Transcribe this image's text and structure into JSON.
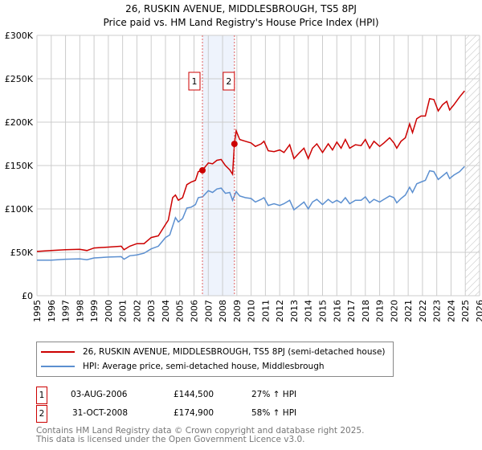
{
  "chart_data": {
    "type": "line",
    "title": "26, RUSKIN AVENUE, MIDDLESBROUGH, TS5 8PJ",
    "subtitle": "Price paid vs. HM Land Registry's House Price Index (HPI)",
    "xlabel": "",
    "ylabel": "",
    "xlim": [
      1995,
      2026
    ],
    "ylim": [
      0,
      300000
    ],
    "x_ticks": [
      "1995",
      "1996",
      "1997",
      "1998",
      "1999",
      "2000",
      "2001",
      "2002",
      "2003",
      "2004",
      "2005",
      "2006",
      "2007",
      "2008",
      "2009",
      "2010",
      "2011",
      "2012",
      "2013",
      "2014",
      "2015",
      "2016",
      "2017",
      "2018",
      "2019",
      "2020",
      "2021",
      "2022",
      "2023",
      "2024",
      "2025",
      "2026"
    ],
    "y_ticks": [
      {
        "v": 0,
        "label": "£0"
      },
      {
        "v": 50000,
        "label": "£50K"
      },
      {
        "v": 100000,
        "label": "£100K"
      },
      {
        "v": 150000,
        "label": "£150K"
      },
      {
        "v": 200000,
        "label": "£200K"
      },
      {
        "v": 250000,
        "label": "£250K"
      },
      {
        "v": 300000,
        "label": "£300K"
      }
    ],
    "grid": true,
    "shaded_period": [
      2006.59,
      2008.83
    ],
    "forecast_hatch_from": 2025.0,
    "series": [
      {
        "name": "26, RUSKIN AVENUE, MIDDLESBROUGH, TS5 8PJ (semi-detached house)",
        "color": "#cc0000",
        "x": [
          1995,
          1996,
          1997,
          1998,
          1998.5,
          1999,
          2000,
          2000.9,
          2001.1,
          2001.5,
          2002,
          2002.5,
          2003,
          2003.5,
          2004,
          2004.2,
          2004.5,
          2004.7,
          2004.9,
          2005.2,
          2005.5,
          2005.8,
          2006.1,
          2006.3,
          2006.59,
          2007,
          2007.3,
          2007.6,
          2007.9,
          2008.2,
          2008.5,
          2008.7,
          2008.83,
          2008.95,
          2009.2,
          2009.6,
          2010,
          2010.3,
          2010.7,
          2010.9,
          2011.2,
          2011.6,
          2012,
          2012.3,
          2012.7,
          2013,
          2013.4,
          2013.7,
          2014,
          2014.3,
          2014.6,
          2015,
          2015.4,
          2015.7,
          2016,
          2016.3,
          2016.6,
          2016.9,
          2017.3,
          2017.7,
          2018,
          2018.3,
          2018.6,
          2019,
          2019.3,
          2019.7,
          2020,
          2020.2,
          2020.5,
          2020.8,
          2021.1,
          2021.3,
          2021.6,
          2021.9,
          2022.2,
          2022.5,
          2022.8,
          2023.1,
          2023.4,
          2023.7,
          2023.9,
          2024.2,
          2024.6,
          2024.95
        ],
        "y": [
          51000,
          52000,
          53000,
          53500,
          52000,
          55000,
          56000,
          57000,
          53000,
          57000,
          60000,
          60000,
          67000,
          69000,
          82000,
          87000,
          113000,
          116000,
          110000,
          113000,
          128000,
          131000,
          133000,
          143000,
          144500,
          153000,
          152000,
          156000,
          157000,
          150000,
          145000,
          140000,
          174900,
          190000,
          180000,
          178000,
          176000,
          172000,
          175000,
          178000,
          167000,
          166000,
          168000,
          165000,
          174000,
          158000,
          165000,
          170000,
          158000,
          170000,
          175000,
          165000,
          175000,
          168000,
          177000,
          170000,
          180000,
          170000,
          174000,
          173000,
          180000,
          170000,
          178000,
          172000,
          176000,
          182000,
          176000,
          170000,
          178000,
          182000,
          198000,
          188000,
          204000,
          207000,
          207000,
          227000,
          226000,
          213000,
          220000,
          224000,
          214000,
          220000,
          229000,
          236000
        ]
      },
      {
        "name": "HPI: Average price, semi-detached house, Middlesbrough",
        "color": "#5b8fd0",
        "x": [
          1995,
          1996,
          1997,
          1998,
          1998.5,
          1999,
          2000,
          2000.9,
          2001.1,
          2001.5,
          2002,
          2002.5,
          2003,
          2003.5,
          2004,
          2004.3,
          2004.7,
          2004.9,
          2005.2,
          2005.5,
          2005.8,
          2006.1,
          2006.3,
          2006.6,
          2007,
          2007.3,
          2007.6,
          2007.9,
          2008.2,
          2008.5,
          2008.7,
          2008.95,
          2009.2,
          2009.6,
          2010,
          2010.3,
          2010.7,
          2010.9,
          2011.2,
          2011.6,
          2012,
          2012.3,
          2012.7,
          2013,
          2013.4,
          2013.7,
          2014,
          2014.3,
          2014.6,
          2015,
          2015.4,
          2015.7,
          2016,
          2016.3,
          2016.6,
          2016.9,
          2017.3,
          2017.7,
          2018,
          2018.3,
          2018.6,
          2019,
          2019.3,
          2019.7,
          2020,
          2020.2,
          2020.5,
          2020.8,
          2021.1,
          2021.3,
          2021.6,
          2021.9,
          2022.2,
          2022.5,
          2022.8,
          2023.1,
          2023.4,
          2023.7,
          2023.9,
          2024.2,
          2024.6,
          2024.95
        ],
        "y": [
          41000,
          41000,
          42000,
          42500,
          41500,
          43500,
          44500,
          45000,
          42000,
          46000,
          47000,
          49000,
          54000,
          57000,
          67000,
          70000,
          90000,
          85000,
          89000,
          101000,
          102000,
          105000,
          113000,
          114000,
          121000,
          119000,
          123000,
          124000,
          118000,
          119000,
          110000,
          120000,
          115000,
          113000,
          112000,
          108000,
          111000,
          113000,
          104000,
          106000,
          104000,
          106000,
          110000,
          99000,
          104000,
          108000,
          100000,
          108000,
          111000,
          105000,
          111000,
          107000,
          110000,
          107000,
          113000,
          106000,
          110000,
          110000,
          114000,
          107000,
          111000,
          108000,
          111000,
          115000,
          113000,
          107000,
          112000,
          116000,
          125000,
          119000,
          129000,
          131000,
          133000,
          144000,
          143000,
          134000,
          138000,
          142000,
          135000,
          139000,
          143000,
          149000
        ]
      }
    ],
    "transactions": [
      {
        "id": "1",
        "x": 2006.59,
        "price": 144500,
        "date": "03-AUG-2006",
        "price_label": "£144,500",
        "hpi_label": "27% ↑ HPI"
      },
      {
        "id": "2",
        "x": 2008.83,
        "price": 174900,
        "date": "31-OCT-2008",
        "price_label": "£174,900",
        "hpi_label": "58% ↑ HPI"
      }
    ],
    "legend_position": "below"
  },
  "footer": {
    "line1": "Contains HM Land Registry data © Crown copyright and database right 2025.",
    "line2": "This data is licensed under the Open Government Licence v3.0."
  }
}
